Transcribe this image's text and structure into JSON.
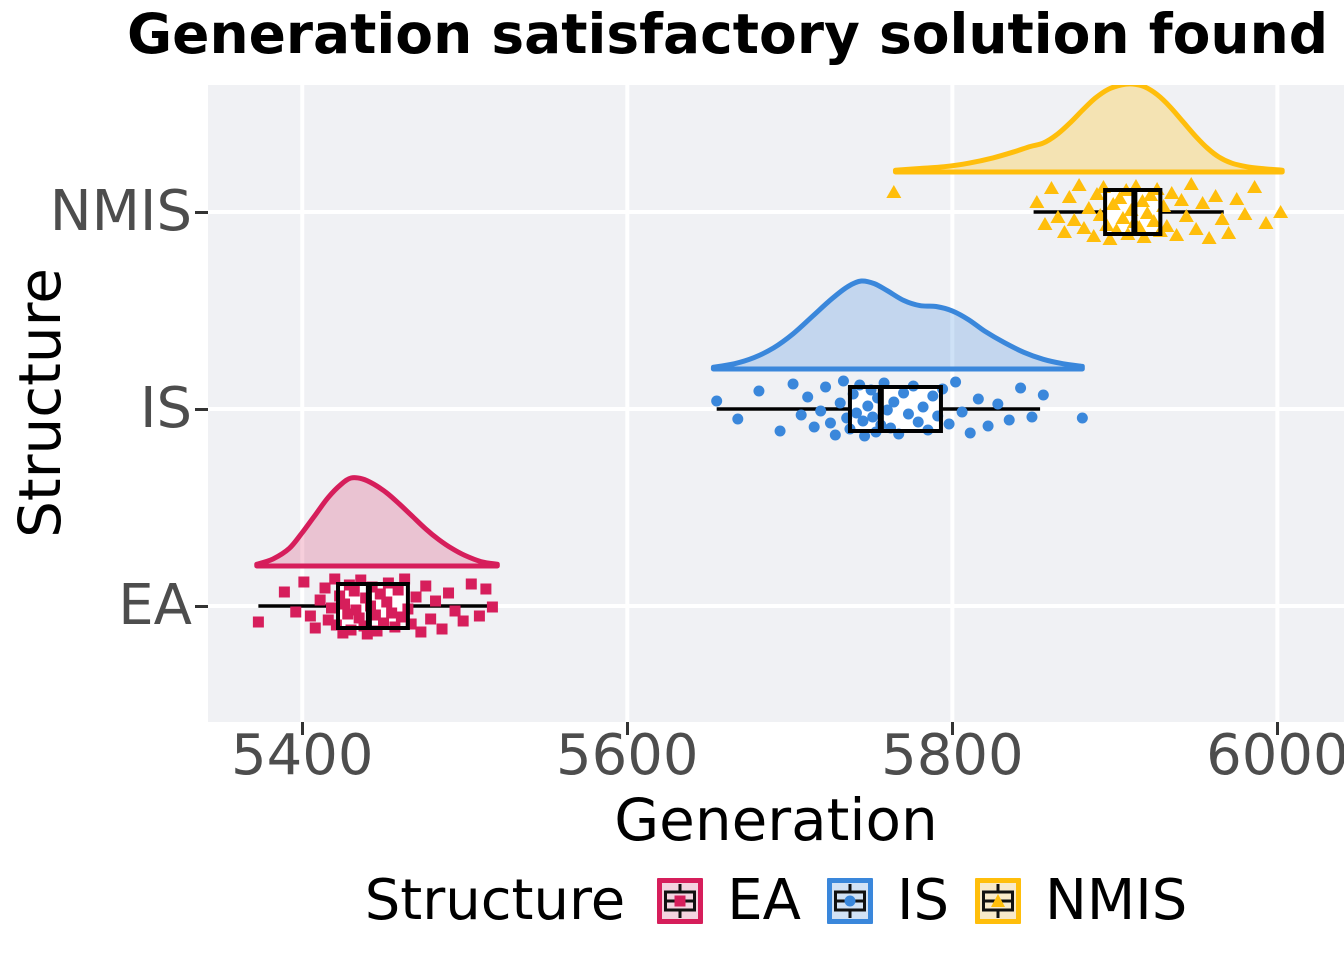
{
  "title": "Generation satisfactory solution found",
  "axes": {
    "x": {
      "label": "Generation",
      "tick_labels": [
        "5400",
        "5600",
        "5800",
        "6000"
      ]
    },
    "y": {
      "label": "Structure",
      "categories": [
        "NMIS",
        "IS",
        "EA"
      ]
    }
  },
  "legend": {
    "title": "Structure",
    "items": [
      {
        "label": "EA",
        "marker": "square",
        "color": "#D61E5B",
        "fill": "#F4D4E0"
      },
      {
        "label": "IS",
        "marker": "circle",
        "color": "#3A87DB",
        "fill": "#D2E2F5"
      },
      {
        "label": "NMIS",
        "marker": "triangle",
        "color": "#FFBE0B",
        "fill": "#F8EACA"
      }
    ]
  },
  "colors": {
    "panel_background": "#F0F1F4",
    "gridline": "#FFFFFF",
    "axis_text": "#4D4D4D",
    "box_stroke": "#000000"
  },
  "chart_data": {
    "type": "raincloud (half-violin density + horizontal boxplot + jittered points)",
    "orientation": "horizontal",
    "title": "Generation satisfactory solution found",
    "xlabel": "Generation",
    "ylabel": "Structure",
    "xlim": [
      5342,
      6041
    ],
    "x_ticks": [
      5400,
      5600,
      5800,
      6000
    ],
    "grid": "major-only",
    "legend_position": "bottom",
    "groups": [
      {
        "name": "NMIS",
        "marker": "triangle",
        "color": "#FFBE0B",
        "fill": "rgba(255,190,11,0.28)",
        "box": {
          "whisker_low": 5850,
          "q1": 5894,
          "median": 5912,
          "q3": 5928,
          "whisker_high": 5967
        },
        "density": [
          [
            5765,
            0.02
          ],
          [
            5780,
            0.04
          ],
          [
            5795,
            0.06
          ],
          [
            5810,
            0.1
          ],
          [
            5825,
            0.16
          ],
          [
            5838,
            0.23
          ],
          [
            5848,
            0.29
          ],
          [
            5856,
            0.33
          ],
          [
            5864,
            0.42
          ],
          [
            5872,
            0.55
          ],
          [
            5880,
            0.7
          ],
          [
            5888,
            0.84
          ],
          [
            5896,
            0.94
          ],
          [
            5904,
            0.99
          ],
          [
            5911,
            1.0
          ],
          [
            5918,
            0.97
          ],
          [
            5926,
            0.88
          ],
          [
            5934,
            0.74
          ],
          [
            5942,
            0.57
          ],
          [
            5950,
            0.4
          ],
          [
            5957,
            0.27
          ],
          [
            5964,
            0.17
          ],
          [
            5972,
            0.1
          ],
          [
            5981,
            0.06
          ],
          [
            5990,
            0.04
          ],
          [
            6003,
            0.02
          ]
        ],
        "points": [
          [
            5764,
            -20
          ],
          [
            5852,
            -10
          ],
          [
            5857,
            12
          ],
          [
            5861,
            -24
          ],
          [
            5865,
            5
          ],
          [
            5869,
            20
          ],
          [
            5872,
            -15
          ],
          [
            5875,
            8
          ],
          [
            5878,
            -27
          ],
          [
            5881,
            16
          ],
          [
            5884,
            -4
          ],
          [
            5887,
            24
          ],
          [
            5889,
            -18
          ],
          [
            5891,
            3
          ],
          [
            5893,
            -25
          ],
          [
            5895,
            13
          ],
          [
            5897,
            27
          ],
          [
            5899,
            -8
          ],
          [
            5901,
            18
          ],
          [
            5903,
            -14
          ],
          [
            5905,
            6
          ],
          [
            5907,
            -22
          ],
          [
            5908,
            22
          ],
          [
            5910,
            -2
          ],
          [
            5912,
            10
          ],
          [
            5913,
            -26
          ],
          [
            5915,
            15
          ],
          [
            5917,
            -11
          ],
          [
            5918,
            25
          ],
          [
            5920,
            1
          ],
          [
            5922,
            -17
          ],
          [
            5924,
            9
          ],
          [
            5926,
            -23
          ],
          [
            5928,
            19
          ],
          [
            5930,
            -6
          ],
          [
            5932,
            14
          ],
          [
            5935,
            -19
          ],
          [
            5938,
            23
          ],
          [
            5941,
            -12
          ],
          [
            5944,
            4
          ],
          [
            5947,
            -28
          ],
          [
            5950,
            17
          ],
          [
            5954,
            -9
          ],
          [
            5958,
            26
          ],
          [
            5962,
            -16
          ],
          [
            5966,
            7
          ],
          [
            5970,
            21
          ],
          [
            5975,
            -13
          ],
          [
            5980,
            2
          ],
          [
            5986,
            -25
          ],
          [
            5993,
            11
          ],
          [
            6002,
            0
          ]
        ]
      },
      {
        "name": "IS",
        "marker": "circle",
        "color": "#3A87DB",
        "fill": "rgba(58,135,219,0.25)",
        "box": {
          "whisker_low": 5655,
          "q1": 5737,
          "median": 5756,
          "q3": 5793,
          "whisker_high": 5854
        },
        "density": [
          [
            5653,
            0.02
          ],
          [
            5666,
            0.06
          ],
          [
            5678,
            0.13
          ],
          [
            5690,
            0.24
          ],
          [
            5702,
            0.4
          ],
          [
            5714,
            0.6
          ],
          [
            5726,
            0.8
          ],
          [
            5736,
            0.94
          ],
          [
            5744,
            1.0
          ],
          [
            5752,
            0.97
          ],
          [
            5760,
            0.89
          ],
          [
            5770,
            0.78
          ],
          [
            5780,
            0.72
          ],
          [
            5790,
            0.71
          ],
          [
            5800,
            0.66
          ],
          [
            5810,
            0.56
          ],
          [
            5820,
            0.43
          ],
          [
            5832,
            0.3
          ],
          [
            5844,
            0.19
          ],
          [
            5856,
            0.11
          ],
          [
            5868,
            0.06
          ],
          [
            5880,
            0.03
          ]
        ],
        "points": [
          [
            5655,
            -8
          ],
          [
            5668,
            10
          ],
          [
            5681,
            -18
          ],
          [
            5694,
            22
          ],
          [
            5702,
            -25
          ],
          [
            5707,
            6
          ],
          [
            5711,
            -12
          ],
          [
            5715,
            18
          ],
          [
            5719,
            2
          ],
          [
            5722,
            -22
          ],
          [
            5725,
            14
          ],
          [
            5728,
            26
          ],
          [
            5731,
            -6
          ],
          [
            5733,
            -28
          ],
          [
            5735,
            9
          ],
          [
            5737,
            20
          ],
          [
            5739,
            -15
          ],
          [
            5741,
            4
          ],
          [
            5743,
            -24
          ],
          [
            5745,
            12
          ],
          [
            5746,
            27
          ],
          [
            5748,
            -3
          ],
          [
            5750,
            -19
          ],
          [
            5751,
            8
          ],
          [
            5753,
            23
          ],
          [
            5754,
            -11
          ],
          [
            5756,
            16
          ],
          [
            5758,
            -26
          ],
          [
            5760,
            1
          ],
          [
            5762,
            19
          ],
          [
            5764,
            -7
          ],
          [
            5767,
            25
          ],
          [
            5770,
            -16
          ],
          [
            5773,
            5
          ],
          [
            5776,
            -23
          ],
          [
            5779,
            13
          ],
          [
            5782,
            -2
          ],
          [
            5785,
            21
          ],
          [
            5788,
            -13
          ],
          [
            5791,
            7
          ],
          [
            5794,
            -20
          ],
          [
            5798,
            15
          ],
          [
            5802,
            -27
          ],
          [
            5806,
            3
          ],
          [
            5811,
            24
          ],
          [
            5816,
            -10
          ],
          [
            5822,
            17
          ],
          [
            5828,
            -5
          ],
          [
            5835,
            11
          ],
          [
            5842,
            -21
          ],
          [
            5849,
            8
          ],
          [
            5856,
            -14
          ],
          [
            5880,
            9
          ]
        ]
      },
      {
        "name": "EA",
        "marker": "square",
        "color": "#D61E5B",
        "fill": "rgba(214,30,91,0.22)",
        "box": {
          "whisker_low": 5373,
          "q1": 5422,
          "median": 5441,
          "q3": 5465,
          "whisker_high": 5517
        },
        "density": [
          [
            5372,
            0.02
          ],
          [
            5382,
            0.08
          ],
          [
            5392,
            0.2
          ],
          [
            5400,
            0.38
          ],
          [
            5408,
            0.58
          ],
          [
            5416,
            0.78
          ],
          [
            5424,
            0.93
          ],
          [
            5430,
            1.0
          ],
          [
            5437,
            0.99
          ],
          [
            5444,
            0.93
          ],
          [
            5452,
            0.83
          ],
          [
            5460,
            0.7
          ],
          [
            5468,
            0.56
          ],
          [
            5476,
            0.42
          ],
          [
            5484,
            0.3
          ],
          [
            5492,
            0.2
          ],
          [
            5500,
            0.12
          ],
          [
            5510,
            0.05
          ],
          [
            5520,
            0.02
          ]
        ],
        "points": [
          [
            5373,
            16
          ],
          [
            5389,
            -14
          ],
          [
            5396,
            6
          ],
          [
            5401,
            -24
          ],
          [
            5405,
            10
          ],
          [
            5408,
            22
          ],
          [
            5411,
            -6
          ],
          [
            5414,
            -18
          ],
          [
            5416,
            14
          ],
          [
            5418,
            2
          ],
          [
            5420,
            -27
          ],
          [
            5421,
            19
          ],
          [
            5423,
            -10
          ],
          [
            5425,
            27
          ],
          [
            5426,
            -2
          ],
          [
            5428,
            8
          ],
          [
            5429,
            -21
          ],
          [
            5430,
            24
          ],
          [
            5432,
            -15
          ],
          [
            5433,
            4
          ],
          [
            5435,
            12
          ],
          [
            5436,
            -26
          ],
          [
            5438,
            20
          ],
          [
            5439,
            -8
          ],
          [
            5440,
            28
          ],
          [
            5442,
            0
          ],
          [
            5443,
            -19
          ],
          [
            5445,
            9
          ],
          [
            5446,
            25
          ],
          [
            5448,
            -12
          ],
          [
            5450,
            17
          ],
          [
            5452,
            -4
          ],
          [
            5453,
            -23
          ],
          [
            5455,
            7
          ],
          [
            5457,
            21
          ],
          [
            5459,
            -16
          ],
          [
            5461,
            11
          ],
          [
            5463,
            -27
          ],
          [
            5465,
            3
          ],
          [
            5467,
            18
          ],
          [
            5470,
            -9
          ],
          [
            5473,
            26
          ],
          [
            5476,
            -20
          ],
          [
            5479,
            13
          ],
          [
            5482,
            -5
          ],
          [
            5486,
            23
          ],
          [
            5490,
            -13
          ],
          [
            5494,
            5
          ],
          [
            5499,
            15
          ],
          [
            5504,
            -22
          ],
          [
            5509,
            10
          ],
          [
            5513,
            -17
          ],
          [
            5517,
            1
          ]
        ]
      }
    ]
  }
}
